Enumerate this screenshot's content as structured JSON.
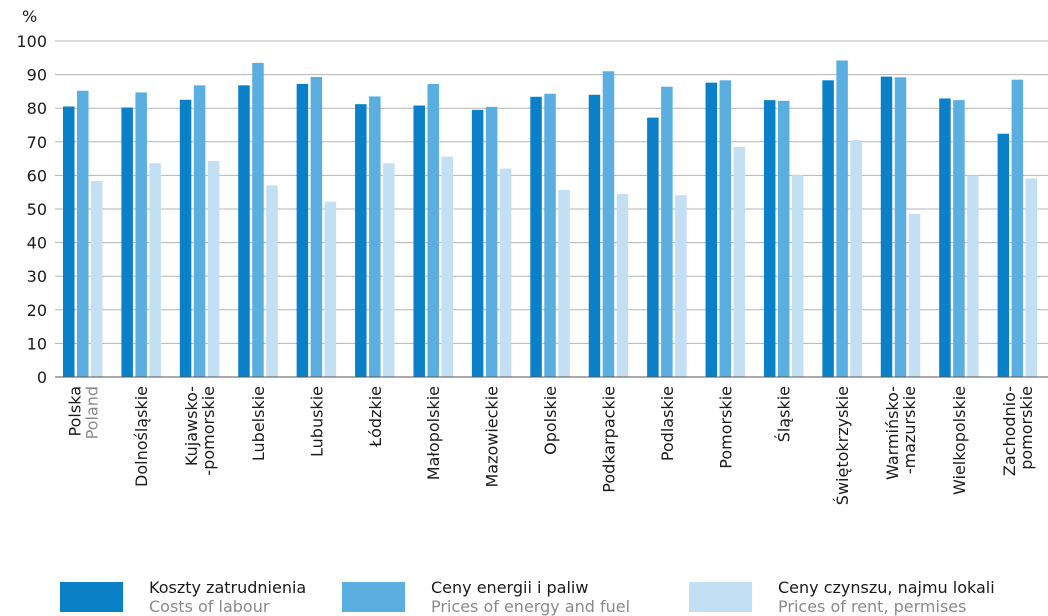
{
  "chart_data": {
    "type": "bar",
    "ylabel": "%",
    "ylim": [
      0,
      100
    ],
    "yticks": [
      0,
      10,
      20,
      30,
      40,
      50,
      60,
      70,
      80,
      90,
      100
    ],
    "grid": true,
    "legend_position": "bottom",
    "categories": [
      [
        "Polska",
        "Poland"
      ],
      [
        "Dolnośląskie"
      ],
      [
        "Kujawsko-",
        "-pomorskie"
      ],
      [
        "Lubelskie"
      ],
      [
        "Lubuskie"
      ],
      [
        "Łódzkie"
      ],
      [
        "Małopolskie"
      ],
      [
        "Mazowieckie"
      ],
      [
        "Opolskie"
      ],
      [
        "Podkarpackie"
      ],
      [
        "Podlaskie"
      ],
      [
        "Pomorskie"
      ],
      [
        "Śląskie"
      ],
      [
        "Świętokrzyskie"
      ],
      [
        "Warmińsko-",
        "-mazurskie"
      ],
      [
        "Wielkopolskie"
      ],
      [
        "Zachodnio-",
        "pomorskie"
      ]
    ],
    "series": [
      {
        "name": "Koszty zatrudnienia",
        "name_en": "Costs of labour",
        "color": "#0a80c9",
        "values": [
          80.5,
          80.2,
          82.5,
          86.8,
          87.2,
          81.2,
          80.8,
          79.5,
          83.4,
          84.0,
          77.2,
          87.6,
          82.4,
          88.3,
          89.4,
          82.9,
          72.4
        ]
      },
      {
        "name": "Ceny energii i paliw",
        "name_en": "Prices of energy and fuel",
        "color": "#5aaee0",
        "values": [
          85.2,
          84.7,
          86.8,
          93.5,
          89.3,
          83.5,
          87.2,
          80.4,
          84.3,
          91.0,
          86.4,
          88.3,
          82.2,
          94.2,
          89.2,
          82.4,
          88.5
        ]
      },
      {
        "name": "Ceny czynszu, najmu lokali",
        "name_en": "Prices of rent, permises",
        "color": "#c2dff3",
        "values": [
          58.3,
          63.6,
          64.3,
          57.0,
          52.2,
          63.6,
          65.6,
          62.0,
          55.7,
          54.5,
          54.1,
          68.5,
          60.1,
          70.5,
          48.5,
          60.0,
          59.1
        ]
      }
    ]
  }
}
